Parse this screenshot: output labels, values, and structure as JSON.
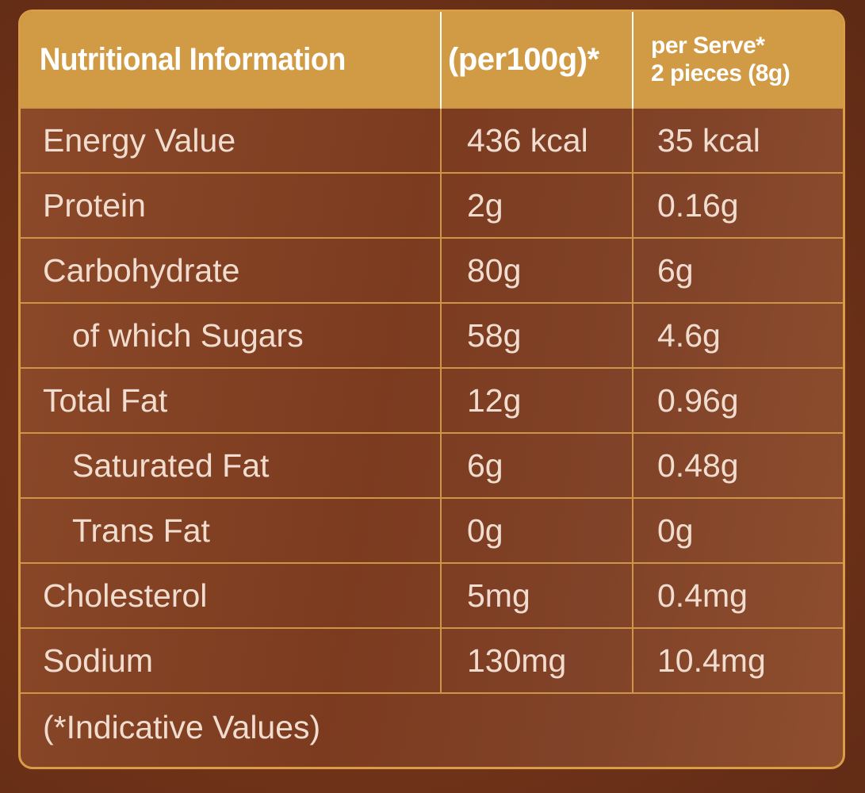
{
  "header": {
    "col1": "Nutritional Information",
    "col2": "(per100g)*",
    "col3_line1": "per Serve*",
    "col3_line2": "2 pieces (8g)"
  },
  "rows": [
    {
      "nutrient": "Energy Value",
      "per100g": "436 kcal",
      "per_serve": "35 kcal"
    },
    {
      "nutrient": "Protein",
      "per100g": "2g",
      "per_serve": "0.16g"
    },
    {
      "nutrient": "Carbohydrate",
      "per100g": "80g",
      "per_serve": "6g"
    },
    {
      "nutrient": "of which Sugars",
      "per100g": "58g",
      "per_serve": "4.6g"
    },
    {
      "nutrient": "Total Fat",
      "per100g": "12g",
      "per_serve": "0.96g"
    },
    {
      "nutrient": "Saturated Fat",
      "per100g": "6g",
      "per_serve": "0.48g"
    },
    {
      "nutrient": "Trans Fat",
      "per100g": "0g",
      "per_serve": "0g"
    },
    {
      "nutrient": "Cholesterol",
      "per100g": "5mg",
      "per_serve": "0.4mg"
    },
    {
      "nutrient": "Sodium",
      "per100g": "130mg",
      "per_serve": "10.4mg"
    }
  ],
  "footnote": "(*Indicative Values)",
  "colors": {
    "header_bg": "#d19a45",
    "border": "#cf9446",
    "panel_bg": "#7c3b1f",
    "text": "#f1ddd0"
  }
}
